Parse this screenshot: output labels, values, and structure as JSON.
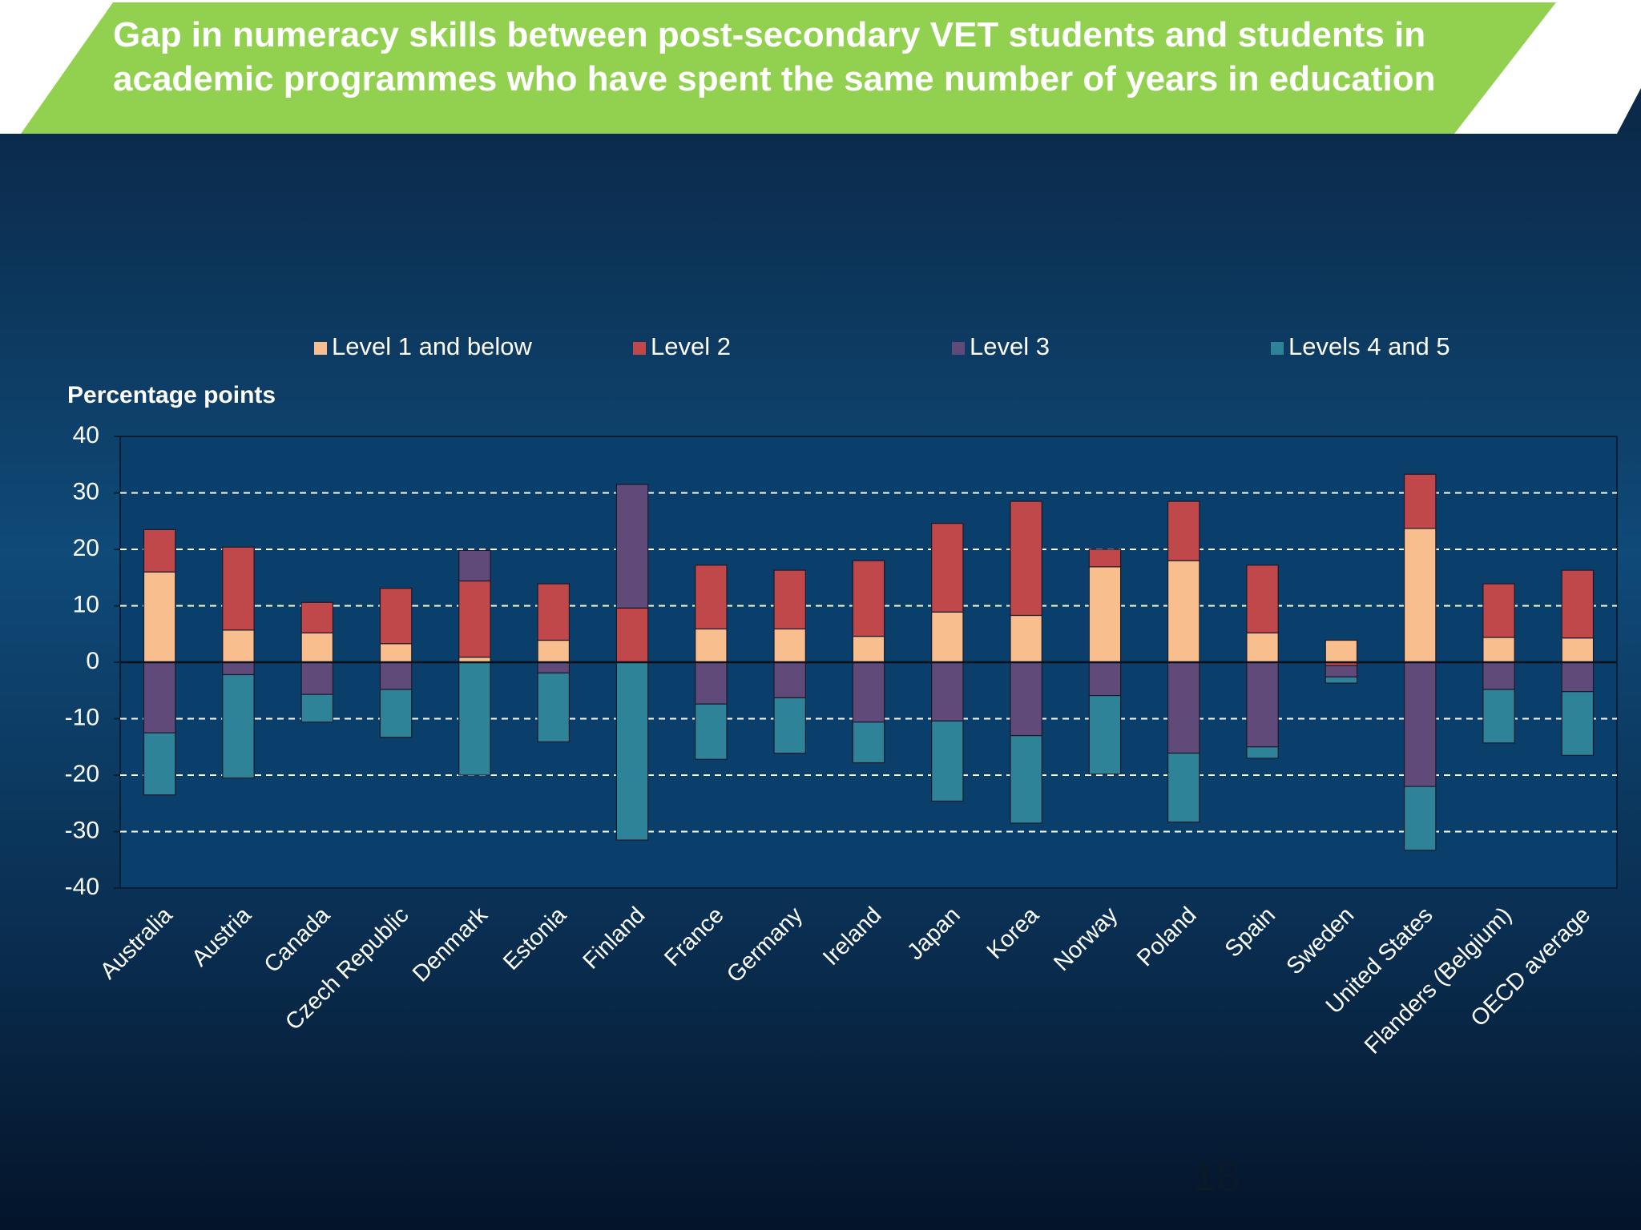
{
  "slide_number": "18",
  "chart_data": {
    "type": "bar",
    "stacked": true,
    "title": "Gap in numeracy skills between post-secondary VET students and students in academic programmes who have spent the same number of years in education",
    "y_label": "Percentage points",
    "categories": [
      "Australia",
      "Austria",
      "Canada",
      "Czech Republic",
      "Denmark",
      "Estonia",
      "Finland",
      "France",
      "Germany",
      "Ireland",
      "Japan",
      "Korea",
      "Norway",
      "Poland",
      "Spain",
      "Sweden",
      "United States",
      "Flanders (Belgium)",
      "OECD average"
    ],
    "series": [
      {
        "name": "Level 1 and below",
        "color": "#f9be8e",
        "values": [
          16,
          5.7,
          5.2,
          3.3,
          0.9,
          3.9,
          null,
          5.9,
          5.9,
          4.6,
          8.9,
          8.3,
          16.9,
          18,
          5.2,
          3.9,
          23.7,
          4.4,
          4.3
        ]
      },
      {
        "name": "Level 2",
        "color": "#c0474a",
        "values": [
          7.5,
          14.7,
          5.4,
          9.8,
          13.5,
          10,
          9.6,
          11.3,
          10.4,
          13.4,
          15.7,
          20.2,
          3.1,
          10.5,
          12,
          -0.6,
          9.6,
          9.5,
          12
        ]
      },
      {
        "name": "Level 3",
        "color": "#5f4a7a",
        "values": [
          -12.5,
          -2.2,
          -5.7,
          -4.8,
          5.4,
          -1.9,
          21.9,
          -7.4,
          -6.3,
          -10.6,
          -10.4,
          -13,
          -5.9,
          -16.1,
          -15,
          -2,
          -22,
          -4.8,
          -5.2
        ]
      },
      {
        "name": "Levels 4 and 5",
        "color": "#2f8399",
        "values": [
          -11,
          -18.3,
          -4.9,
          -8.5,
          -20,
          -12.2,
          -31.5,
          -9.8,
          -9.8,
          -7.2,
          -14.2,
          -15.5,
          -13.9,
          -12.2,
          -2,
          -1.1,
          -11.3,
          -9.5,
          -11.3
        ]
      }
    ],
    "ylim": [
      -40,
      40
    ],
    "yticks": [
      -40,
      -30,
      -20,
      -10,
      0,
      10,
      20,
      30,
      40
    ],
    "grid": true
  }
}
